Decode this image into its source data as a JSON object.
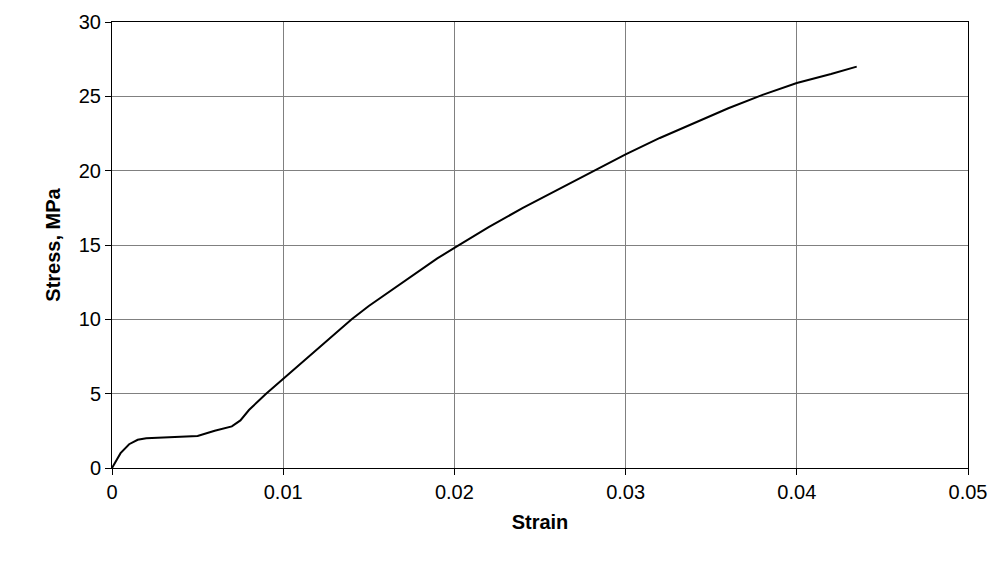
{
  "chart_data": {
    "type": "line",
    "x_label": "Strain",
    "y_label": "Stress, MPa",
    "x": [
      0,
      0.0005,
      0.001,
      0.0015,
      0.002,
      0.003,
      0.004,
      0.005,
      0.006,
      0.007,
      0.0075,
      0.008,
      0.009,
      0.01,
      0.011,
      0.012,
      0.013,
      0.014,
      0.015,
      0.016,
      0.017,
      0.018,
      0.019,
      0.02,
      0.022,
      0.024,
      0.026,
      0.028,
      0.03,
      0.032,
      0.034,
      0.036,
      0.038,
      0.04,
      0.042,
      0.0435
    ],
    "values": [
      0,
      1.0,
      1.6,
      1.9,
      2.0,
      2.05,
      2.15,
      2.15,
      2.5,
      2.8,
      3.2,
      3.9,
      5.0,
      6.0,
      7.0,
      8.0,
      9.0,
      10.0,
      10.9,
      11.7,
      12.5,
      13.3,
      14.1,
      14.8,
      16.2,
      17.5,
      18.7,
      19.9,
      21.1,
      22.2,
      23.2,
      24.2,
      25.1,
      25.9,
      26.5,
      27.0
    ],
    "color": "#000000",
    "xlim": [
      0,
      0.05
    ],
    "xticks": [
      0,
      0.01,
      0.02,
      0.03,
      0.04,
      0.05
    ],
    "ylim": [
      0,
      30
    ],
    "yticks": [
      0,
      5,
      10,
      15,
      20,
      25,
      30
    ],
    "grid": true
  }
}
